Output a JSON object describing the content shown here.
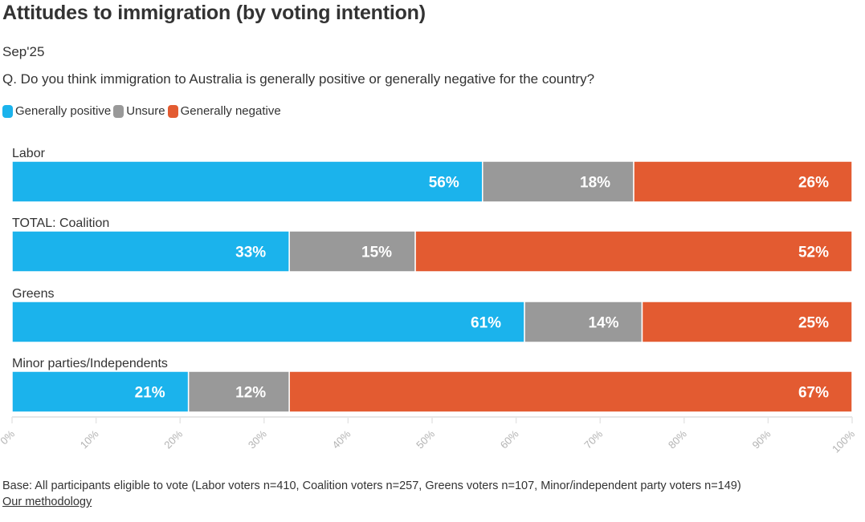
{
  "header": {
    "title": "Attitudes to immigration (by voting intention)",
    "subtitle": "Sep'25",
    "question": "Q. Do you think immigration to Australia is generally positive or generally negative for the country?"
  },
  "legend": [
    {
      "label": "Generally positive",
      "color": "#1bb3ec"
    },
    {
      "label": "Unsure",
      "color": "#999999"
    },
    {
      "label": "Generally negative",
      "color": "#e35b31"
    }
  ],
  "footer": {
    "base_note": "Base: All participants eligible to vote (Labor voters n=410, Coalition voters n=257, Greens voters n=107, Minor/independent party voters n=149)",
    "methodology_link": "Our methodology"
  },
  "chart_data": {
    "type": "bar",
    "orientation": "horizontal",
    "stacked": true,
    "title": "Attitudes to immigration (by voting intention)",
    "subtitle": "Sep'25",
    "categories": [
      "Labor",
      "TOTAL: Coalition",
      "Greens",
      "Minor parties/Independents"
    ],
    "series": [
      {
        "name": "Generally positive",
        "color": "#1bb3ec",
        "values": [
          56,
          33,
          61,
          21
        ]
      },
      {
        "name": "Unsure",
        "color": "#999999",
        "values": [
          18,
          15,
          14,
          12
        ]
      },
      {
        "name": "Generally negative",
        "color": "#e35b31",
        "values": [
          26,
          52,
          25,
          67
        ]
      }
    ],
    "data_labels": [
      [
        "56%",
        "18%",
        "26%"
      ],
      [
        "33%",
        "15%",
        "52%"
      ],
      [
        "61%",
        "14%",
        "25%"
      ],
      [
        "21%",
        "12%",
        "67%"
      ]
    ],
    "xlim": [
      0,
      100
    ],
    "x_ticks": [
      0,
      10,
      20,
      30,
      40,
      50,
      60,
      70,
      80,
      90,
      100
    ],
    "x_tick_labels": [
      "0%",
      "10%",
      "20%",
      "30%",
      "40%",
      "50%",
      "60%",
      "70%",
      "80%",
      "90%",
      "100%"
    ],
    "xlabel": "",
    "ylabel": "",
    "legend_position": "top-left",
    "grid": false
  }
}
